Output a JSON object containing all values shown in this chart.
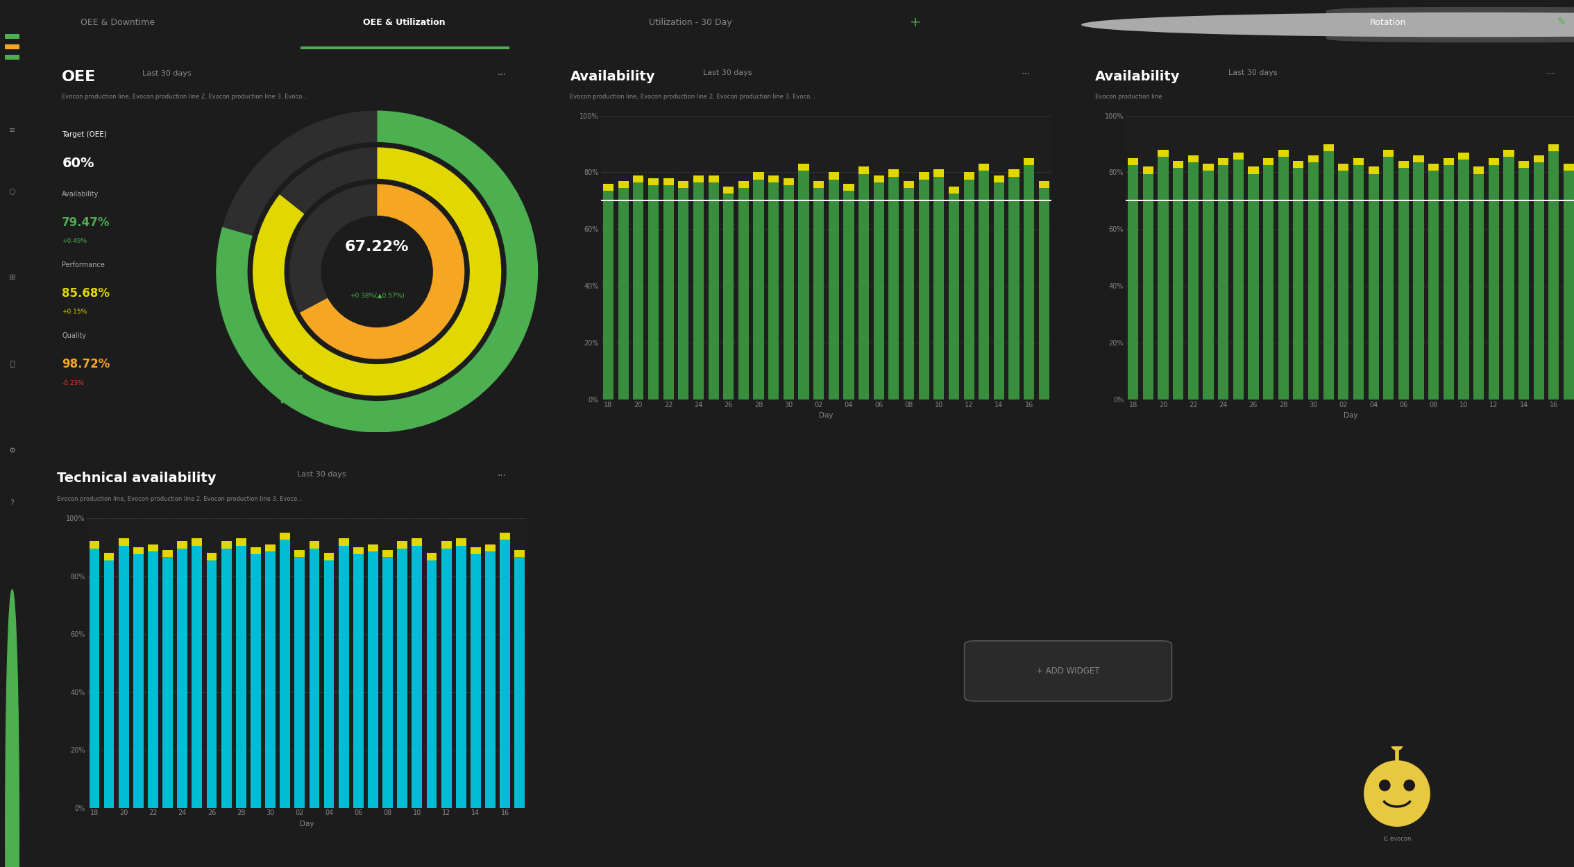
{
  "bg_color": "#1c1c1c",
  "panel_bg": "#1e1e1e",
  "sidebar_bg": "#181818",
  "nav_bg": "#222222",
  "active_tab_line": "#4caf50",
  "tabs": [
    "OEE & Downtime",
    "OEE & Utilization",
    "Utilization - 30 Day"
  ],
  "active_tab_idx": 1,
  "panel1_title": "OEE",
  "panel1_subtitle": "Last 30 days",
  "panel1_desc": "Evocon production line, Evocon production line 2, Evocon production line 3, Evoco...",
  "panel1_target_label": "Target (OEE)",
  "panel1_target_value": "60%",
  "panel1_avail_label": "Availability",
  "panel1_avail_value": "79.47%",
  "panel1_avail_delta": "+0.49%",
  "panel1_avail_color": "#4caf50",
  "panel1_perf_label": "Performance",
  "panel1_perf_value": "85.68%",
  "panel1_perf_delta": "+0.15%",
  "panel1_perf_color": "#e0d800",
  "panel1_qual_label": "Quality",
  "panel1_qual_value": "98.72%",
  "panel1_qual_delta": "-0.23%",
  "panel1_qual_color": "#f5a623",
  "panel1_qual_delta_color": "#e53935",
  "panel1_center_value": "67.22%",
  "panel1_center_sub": "+0.38%(▲0.57%)",
  "donut_oee_pct": 67.22,
  "donut_avail_pct": 79.47,
  "donut_perf_pct": 85.68,
  "donut_color_oee": "#f5a623",
  "donut_color_perf": "#e0d800",
  "donut_color_avail": "#4caf50",
  "donut_color_bg": "#2e2e2e",
  "donut_target_pct": 60.0,
  "donut_target_color": "#4caf50",
  "panel2_title": "Availability",
  "panel2_subtitle": "Last 30 days",
  "panel2_desc": "Evocon production line, Evocon production line 2, Evocon production line 3, Evoco...",
  "panel2_ytick_labels": [
    "0%",
    "20%",
    "40%",
    "60%",
    "80%",
    "100%"
  ],
  "panel2_xtick_labels": [
    "18",
    "20",
    "22",
    "24",
    "26",
    "28",
    "30",
    "02",
    "04",
    "06",
    "08",
    "10",
    "12",
    "14",
    "16"
  ],
  "panel2_xlabel": "Day",
  "panel2_bar_values": [
    76,
    77,
    79,
    78,
    78,
    77,
    79,
    79,
    75,
    77,
    80,
    79,
    78,
    83,
    77,
    80,
    76,
    82,
    79,
    81,
    77,
    80,
    81,
    75,
    80,
    83,
    79,
    81,
    85,
    77
  ],
  "panel2_bar_color_main": "#388e3c",
  "panel2_bar_color_top": "#e0d800",
  "panel2_target_line": 70,
  "panel2_target_color": "#ffffff",
  "panel2_grid_color": "#3a3a3a",
  "panel3_title": "Availability",
  "panel3_subtitle": "Last 30 days",
  "panel3_desc": "Evocon production line",
  "panel3_ytick_labels": [
    "0%",
    "20%",
    "40%",
    "60%",
    "80%",
    "100%"
  ],
  "panel3_xtick_labels": [
    "18",
    "20",
    "22",
    "24",
    "26",
    "28",
    "30",
    "02",
    "04",
    "06",
    "08",
    "10",
    "12",
    "14",
    "16"
  ],
  "panel3_xlabel": "Day",
  "panel3_bar_values": [
    85,
    82,
    88,
    84,
    86,
    83,
    85,
    87,
    82,
    85,
    88,
    84,
    86,
    90,
    83,
    85,
    82,
    88,
    84,
    86,
    83,
    85,
    87,
    82,
    85,
    88,
    84,
    86,
    90,
    83
  ],
  "panel3_bar_color_main": "#388e3c",
  "panel3_bar_color_top": "#e0d800",
  "panel3_target_line": 70,
  "panel3_target_color": "#ffffff",
  "panel3_grid_color": "#3a3a3a",
  "panel4_title": "Technical availability",
  "panel4_subtitle": "Last 30 days",
  "panel4_desc": "Evocon production line, Evocon production line 2, Evocon production line 3, Evoco...",
  "panel4_ytick_labels": [
    "0%",
    "20%",
    "40%",
    "60%",
    "80%",
    "100%"
  ],
  "panel4_xtick_labels": [
    "18",
    "20",
    "22",
    "24",
    "26",
    "28",
    "30",
    "02",
    "04",
    "06",
    "08",
    "10",
    "12",
    "14",
    "16"
  ],
  "panel4_xlabel": "Day",
  "panel4_bar_values": [
    92,
    88,
    93,
    90,
    91,
    89,
    92,
    93,
    88,
    92,
    93,
    90,
    91,
    95,
    89,
    92,
    88,
    93,
    90,
    91,
    89,
    92,
    93,
    88,
    92,
    93,
    90,
    91,
    95,
    89
  ],
  "panel4_bar_color_main": "#00bcd4",
  "panel4_bar_color_top": "#e0d800",
  "panel4_grid_color": "#3a3a3a",
  "add_widget_text": "+ ADD WIDGET",
  "text_white": "#ffffff",
  "text_gray": "#888888",
  "text_light_gray": "#aaaaaa",
  "text_green": "#4caf50",
  "text_red": "#e53935",
  "text_orange": "#f5a623",
  "text_yellow": "#e0d800"
}
